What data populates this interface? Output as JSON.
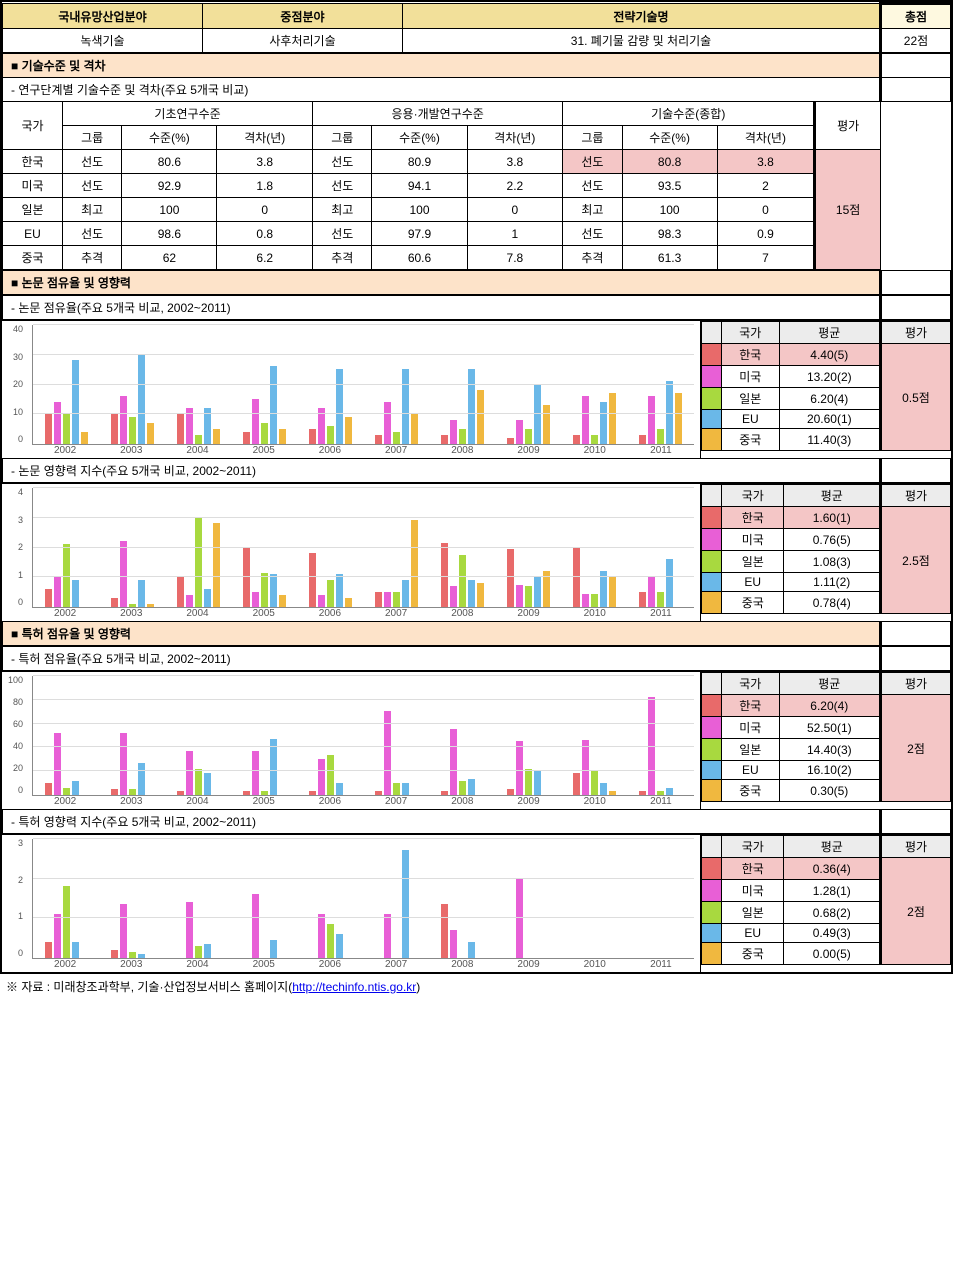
{
  "header": {
    "col1": "국내유망산업분야",
    "col2": "중점분야",
    "col3": "전략기술명",
    "col4": "총점",
    "val1": "녹색기술",
    "val2": "사후처리기술",
    "val3": "31. 폐기물 감량 및 처리기술",
    "val4": "22점"
  },
  "section1": {
    "title": "■ 기술수준 및 격차",
    "subtitle": "- 연구단계별 기술수준 및 격차(주요 5개국 비교)",
    "cols": {
      "country": "국가",
      "basic": "기초연구수준",
      "applied": "응용·개발연구수준",
      "overall": "기술수준(종합)",
      "eval": "평가",
      "group": "그룹",
      "level": "수준(%)",
      "gap": "격차(년)"
    },
    "rows": [
      {
        "c": "한국",
        "bg": "선도",
        "bl": "80.6",
        "bp": "3.8",
        "ag": "선도",
        "al": "80.9",
        "ap": "3.8",
        "og": "선도",
        "ol": "80.8",
        "op": "3.8",
        "hl": true
      },
      {
        "c": "미국",
        "bg": "선도",
        "bl": "92.9",
        "bp": "1.8",
        "ag": "선도",
        "al": "94.1",
        "ap": "2.2",
        "og": "선도",
        "ol": "93.5",
        "op": "2"
      },
      {
        "c": "일본",
        "bg": "최고",
        "bl": "100",
        "bp": "0",
        "ag": "최고",
        "al": "100",
        "ap": "0",
        "og": "최고",
        "ol": "100",
        "op": "0"
      },
      {
        "c": "EU",
        "bg": "선도",
        "bl": "98.6",
        "bp": "0.8",
        "ag": "선도",
        "al": "97.9",
        "ap": "1",
        "og": "선도",
        "ol": "98.3",
        "op": "0.9"
      },
      {
        "c": "중국",
        "bg": "추격",
        "bl": "62",
        "bp": "6.2",
        "ag": "추격",
        "al": "60.6",
        "ap": "7.8",
        "og": "추격",
        "ol": "61.3",
        "op": "7"
      }
    ],
    "eval": "15점"
  },
  "section2": {
    "title": "■ 논문 점유율 및 영향력"
  },
  "section3": {
    "title": "■ 특허 점유율 및 영향력"
  },
  "charts": [
    {
      "subtitle": "- 논문 점유율(주요 5개국 비교, 2002~2011)",
      "ymax": 40,
      "yticks": [
        0,
        10,
        20,
        30,
        40
      ],
      "side_head": {
        "c": "국가",
        "a": "평균",
        "e": "평가"
      },
      "side": [
        {
          "color": "#e86a6a",
          "c": "한국",
          "a": "4.40(5)",
          "hl": true
        },
        {
          "color": "#e85fd6",
          "c": "미국",
          "a": "13.20(2)"
        },
        {
          "color": "#a8d93f",
          "c": "일본",
          "a": "6.20(4)"
        },
        {
          "color": "#6ab8e8",
          "c": "EU",
          "a": "20.60(1)"
        },
        {
          "color": "#f0b83f",
          "c": "중국",
          "a": "11.40(3)"
        }
      ],
      "eval": "0.5점",
      "years": [
        "2002",
        "2003",
        "2004",
        "2005",
        "2006",
        "2007",
        "2008",
        "2009",
        "2010",
        "2011"
      ],
      "data": [
        [
          10,
          14,
          10,
          28,
          4
        ],
        [
          10,
          16,
          9,
          30,
          7
        ],
        [
          10,
          12,
          3,
          12,
          5
        ],
        [
          4,
          15,
          7,
          26,
          5
        ],
        [
          5,
          12,
          6,
          25,
          9
        ],
        [
          3,
          14,
          4,
          25,
          10
        ],
        [
          3,
          8,
          5,
          25,
          18
        ],
        [
          2,
          8,
          5,
          20,
          13
        ],
        [
          3,
          16,
          3,
          14,
          17
        ],
        [
          3,
          16,
          5,
          21,
          17
        ]
      ]
    },
    {
      "subtitle": "- 논문 영향력 지수(주요 5개국 비교, 2002~2011)",
      "ymax": 4,
      "yticks": [
        0,
        1,
        2,
        3,
        4
      ],
      "side_head": {
        "c": "국가",
        "a": "평균",
        "e": "평가"
      },
      "side": [
        {
          "color": "#e86a6a",
          "c": "한국",
          "a": "1.60(1)",
          "hl": true
        },
        {
          "color": "#e85fd6",
          "c": "미국",
          "a": "0.76(5)"
        },
        {
          "color": "#a8d93f",
          "c": "일본",
          "a": "1.08(3)"
        },
        {
          "color": "#6ab8e8",
          "c": "EU",
          "a": "1.11(2)"
        },
        {
          "color": "#f0b83f",
          "c": "중국",
          "a": "0.78(4)"
        }
      ],
      "eval": "2.5점",
      "years": [
        "2002",
        "2003",
        "2004",
        "2005",
        "2006",
        "2007",
        "2008",
        "2009",
        "2010",
        "2011"
      ],
      "data": [
        [
          0.6,
          1.0,
          2.1,
          0.9,
          0
        ],
        [
          0.3,
          2.2,
          0.1,
          0.9,
          0.1
        ],
        [
          1.0,
          0.4,
          3.0,
          0.6,
          2.8
        ],
        [
          2.0,
          0.5,
          1.15,
          1.1,
          0.4
        ],
        [
          1.8,
          0.4,
          0.9,
          1.1,
          0.3
        ],
        [
          0.5,
          0.5,
          0.5,
          0.9,
          2.9
        ],
        [
          2.15,
          0.7,
          1.75,
          0.9,
          0.8
        ],
        [
          1.95,
          0.75,
          0.7,
          1.05,
          1.2
        ],
        [
          2.0,
          0.45,
          0.45,
          1.2,
          1.0
        ],
        [
          0.5,
          1.0,
          0.5,
          1.6,
          0
        ]
      ]
    },
    {
      "subtitle": "- 특허 점유율(주요 5개국 비교, 2002~2011)",
      "ymax": 100,
      "yticks": [
        0,
        20,
        40,
        60,
        80,
        100
      ],
      "side_head": {
        "c": "국가",
        "a": "평균",
        "e": "평가"
      },
      "side": [
        {
          "color": "#e86a6a",
          "c": "한국",
          "a": "6.20(4)",
          "hl": true
        },
        {
          "color": "#e85fd6",
          "c": "미국",
          "a": "52.50(1)"
        },
        {
          "color": "#a8d93f",
          "c": "일본",
          "a": "14.40(3)"
        },
        {
          "color": "#6ab8e8",
          "c": "EU",
          "a": "16.10(2)"
        },
        {
          "color": "#f0b83f",
          "c": "중국",
          "a": "0.30(5)"
        }
      ],
      "eval": "2점",
      "years": [
        "2002",
        "2003",
        "2004",
        "2005",
        "2006",
        "2007",
        "2008",
        "2009",
        "2010",
        "2011"
      ],
      "data": [
        [
          10,
          52,
          6,
          12,
          0
        ],
        [
          5,
          52,
          5,
          27,
          0
        ],
        [
          3,
          37,
          22,
          18,
          0
        ],
        [
          3,
          37,
          3,
          47,
          0
        ],
        [
          3,
          30,
          33,
          10,
          0
        ],
        [
          3,
          70,
          10,
          10,
          0
        ],
        [
          3,
          55,
          12,
          13,
          0
        ],
        [
          5,
          45,
          22,
          20,
          0
        ],
        [
          18,
          46,
          20,
          10,
          3
        ],
        [
          3,
          82,
          3,
          6,
          0
        ]
      ]
    },
    {
      "subtitle": "- 특허 영향력 지수(주요 5개국 비교, 2002~2011)",
      "ymax": 3,
      "yticks": [
        0,
        1,
        2,
        3
      ],
      "side_head": {
        "c": "국가",
        "a": "평균",
        "e": "평가"
      },
      "side": [
        {
          "color": "#e86a6a",
          "c": "한국",
          "a": "0.36(4)",
          "hl": true
        },
        {
          "color": "#e85fd6",
          "c": "미국",
          "a": "1.28(1)"
        },
        {
          "color": "#a8d93f",
          "c": "일본",
          "a": "0.68(2)"
        },
        {
          "color": "#6ab8e8",
          "c": "EU",
          "a": "0.49(3)"
        },
        {
          "color": "#f0b83f",
          "c": "중국",
          "a": "0.00(5)"
        }
      ],
      "eval": "2점",
      "years": [
        "2002",
        "2003",
        "2004",
        "2005",
        "2006",
        "2007",
        "2008",
        "2009",
        "2010",
        "2011"
      ],
      "data": [
        [
          0.4,
          1.1,
          1.8,
          0.4,
          0
        ],
        [
          0.2,
          1.35,
          0.15,
          0.1,
          0
        ],
        [
          0,
          1.4,
          0.3,
          0.35,
          0
        ],
        [
          0,
          1.6,
          0,
          0.45,
          0
        ],
        [
          0,
          1.1,
          0.85,
          0.6,
          0
        ],
        [
          0,
          1.1,
          0,
          2.7,
          0
        ],
        [
          1.35,
          0.7,
          0,
          0.4,
          0
        ],
        [
          0,
          2.0,
          0,
          0,
          0
        ],
        [
          0,
          0,
          0,
          0,
          0
        ],
        [
          0,
          0,
          0,
          0,
          0
        ]
      ]
    }
  ],
  "colors": [
    "#e86a6a",
    "#e85fd6",
    "#a8d93f",
    "#6ab8e8",
    "#f0b83f"
  ],
  "footnote": {
    "prefix": "※ 자료 : 미래창조과학부, 기술·산업정보서비스 홈페이지(",
    "link_text": "http://techinfo.ntis.go.kr",
    "suffix": ")"
  }
}
